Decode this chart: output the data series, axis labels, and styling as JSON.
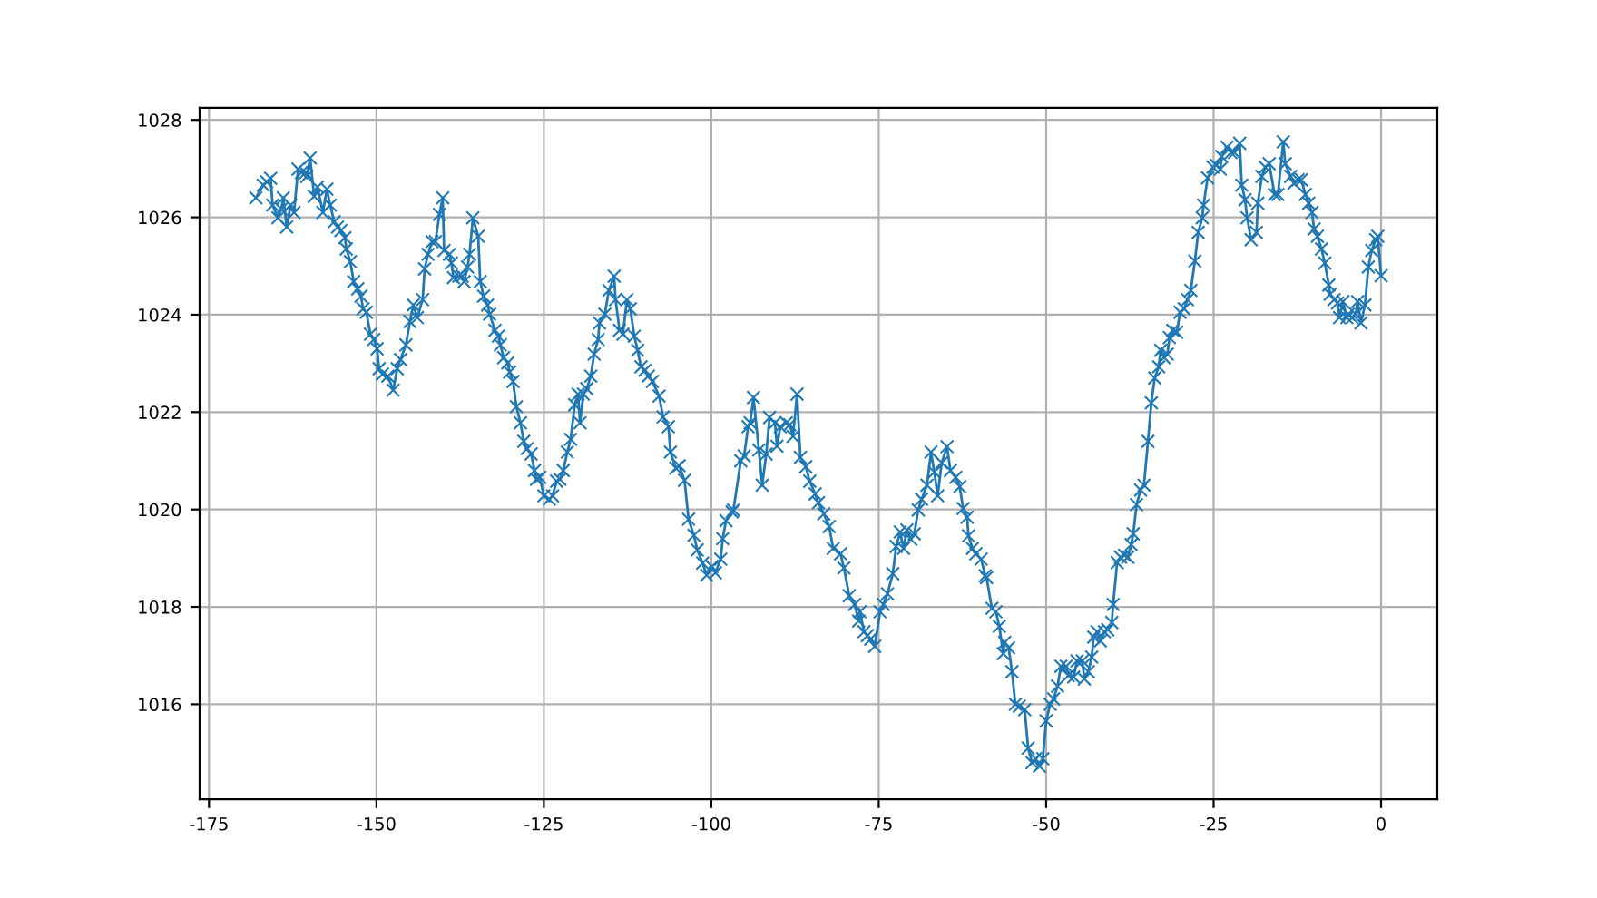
{
  "chart_data": {
    "type": "line",
    "marker": "cross",
    "line_style": "solid",
    "grid": true,
    "xlim": [
      -176.4,
      8.4
    ],
    "ylim": [
      1014.05,
      1028.25
    ],
    "xticks": [
      -175,
      -150,
      -125,
      -100,
      -75,
      -50,
      -25,
      0
    ],
    "yticks": [
      1016,
      1018,
      1020,
      1022,
      1024,
      1026,
      1028
    ],
    "series": [
      {
        "color": "#1f77b4",
        "x": [
          -168,
          -166.9,
          -166.4,
          -165.8,
          -165.5,
          -164.7,
          -164.2,
          -163.9,
          -163.4,
          -162.8,
          -162.3,
          -161.7,
          -161.2,
          -160.6,
          -160.4,
          -159.9,
          -159.3,
          -158.8,
          -158.0,
          -157.4,
          -156.9,
          -156.3,
          -155.8,
          -155.3,
          -154.7,
          -154.5,
          -153.9,
          -153.4,
          -152.8,
          -152.3,
          -152.0,
          -151.5,
          -150.9,
          -150.4,
          -149.9,
          -149.6,
          -149.1,
          -148.3,
          -147.5,
          -146.9,
          -146.4,
          -145.6,
          -145.0,
          -144.5,
          -143.9,
          -143.1,
          -142.8,
          -142.3,
          -141.7,
          -141.2,
          -140.6,
          -140.1,
          -139.9,
          -139.1,
          -138.8,
          -138.5,
          -137.7,
          -137.2,
          -136.9,
          -136.4,
          -136.1,
          -135.6,
          -134.8,
          -134.5,
          -134.0,
          -133.4,
          -133.1,
          -132.3,
          -131.8,
          -131.5,
          -131.0,
          -130.4,
          -130.1,
          -129.6,
          -129.1,
          -128.5,
          -128.0,
          -127.5,
          -126.9,
          -126.4,
          -126.1,
          -125.6,
          -125.0,
          -124.2,
          -123.7,
          -123.1,
          -122.6,
          -122.1,
          -121.5,
          -121.0,
          -120.4,
          -119.9,
          -119.6,
          -119.1,
          -118.6,
          -118.0,
          -117.5,
          -116.9,
          -116.7,
          -115.9,
          -115.3,
          -114.5,
          -114.3,
          -113.7,
          -113.2,
          -112.6,
          -112.1,
          -111.5,
          -111.0,
          -110.5,
          -109.9,
          -109.4,
          -108.8,
          -107.8,
          -107.2,
          -106.4,
          -106.1,
          -105.3,
          -104.8,
          -104.0,
          -103.4,
          -102.6,
          -102.1,
          -101.3,
          -100.7,
          -99.9,
          -99.4,
          -98.6,
          -98.3,
          -97.8,
          -96.9,
          -96.7,
          -95.6,
          -95.1,
          -94.5,
          -94.2,
          -93.7,
          -92.9,
          -92.4,
          -91.8,
          -91.3,
          -90.5,
          -90.2,
          -89.7,
          -88.8,
          -88.3,
          -87.8,
          -87.2,
          -86.7,
          -85.9,
          -85.3,
          -84.5,
          -84.0,
          -83.2,
          -82.4,
          -81.8,
          -80.7,
          -80.2,
          -79.4,
          -78.6,
          -78.0,
          -77.8,
          -77.2,
          -76.7,
          -76.2,
          -75.6,
          -74.8,
          -74.3,
          -73.7,
          -72.9,
          -72.4,
          -71.8,
          -71.3,
          -70.8,
          -70.2,
          -69.7,
          -69.1,
          -68.6,
          -67.8,
          -67.2,
          -66.7,
          -66.2,
          -65.6,
          -64.8,
          -64.3,
          -63.5,
          -62.9,
          -62.4,
          -61.8,
          -61.6,
          -61.0,
          -60.5,
          -59.7,
          -59.1,
          -58.9,
          -58.1,
          -57.5,
          -57.0,
          -56.4,
          -56.2,
          -55.6,
          -55.1,
          -54.6,
          -54.0,
          -53.2,
          -52.7,
          -52.1,
          -51.6,
          -51.0,
          -50.5,
          -50.0,
          -49.4,
          -48.9,
          -48.3,
          -47.8,
          -47.0,
          -46.7,
          -45.9,
          -45.4,
          -44.6,
          -44.3,
          -43.7,
          -43.2,
          -42.9,
          -42.4,
          -41.9,
          -41.3,
          -40.8,
          -40.2,
          -40.0,
          -39.4,
          -38.9,
          -38.3,
          -37.8,
          -37.3,
          -37.0,
          -36.5,
          -35.9,
          -35.4,
          -34.8,
          -34.3,
          -33.8,
          -33.2,
          -32.9,
          -32.4,
          -31.9,
          -31.6,
          -31.1,
          -30.5,
          -30.0,
          -29.4,
          -28.9,
          -28.4,
          -27.8,
          -27.3,
          -26.7,
          -26.5,
          -25.9,
          -25.1,
          -24.6,
          -24.0,
          -23.8,
          -23.0,
          -22.4,
          -21.9,
          -21.1,
          -20.8,
          -20.3,
          -20.0,
          -19.4,
          -18.6,
          -18.4,
          -17.8,
          -17.3,
          -16.7,
          -15.9,
          -15.4,
          -14.6,
          -14.3,
          -13.5,
          -13.0,
          -12.4,
          -11.9,
          -11.3,
          -10.8,
          -10.3,
          -10.0,
          -9.5,
          -8.9,
          -8.4,
          -7.8,
          -7.6,
          -7.0,
          -6.5,
          -6.2,
          -5.7,
          -5.1,
          -4.9,
          -4.3,
          -3.8,
          -3.5,
          -3.0,
          -2.4,
          -1.9,
          -1.4,
          -0.8,
          -0.5,
          0
        ],
        "values": [
          1026.4,
          1026.66,
          1026.73,
          1026.8,
          1026.25,
          1025.99,
          1026.17,
          1026.4,
          1025.8,
          1026.25,
          1026.1,
          1026.99,
          1026.92,
          1026.92,
          1026.84,
          1027.22,
          1026.43,
          1026.62,
          1026.1,
          1026.58,
          1026.25,
          1025.91,
          1025.8,
          1025.73,
          1025.58,
          1025.35,
          1025.09,
          1024.68,
          1024.53,
          1024.38,
          1024.12,
          1024.05,
          1023.6,
          1023.49,
          1023.3,
          1022.89,
          1022.78,
          1022.74,
          1022.45,
          1022.89,
          1023.08,
          1023.38,
          1023.86,
          1024.2,
          1023.94,
          1024.31,
          1024.94,
          1025.24,
          1025.5,
          1025.5,
          1026.06,
          1026.4,
          1025.32,
          1025.24,
          1025.06,
          1024.76,
          1024.79,
          1024.79,
          1024.68,
          1024.98,
          1025.24,
          1025.99,
          1025.61,
          1024.68,
          1024.38,
          1024.2,
          1024.01,
          1023.68,
          1023.56,
          1023.38,
          1023.12,
          1023.01,
          1022.82,
          1022.63,
          1022.11,
          1021.78,
          1021.4,
          1021.25,
          1021.14,
          1020.8,
          1020.62,
          1020.66,
          1020.28,
          1020.21,
          1020.28,
          1020.58,
          1020.62,
          1020.8,
          1021.18,
          1021.44,
          1022.15,
          1022.37,
          1021.78,
          1022.37,
          1022.48,
          1022.74,
          1023.19,
          1023.49,
          1023.83,
          1024.01,
          1024.5,
          1024.79,
          1024.31,
          1023.68,
          1023.6,
          1024.31,
          1024.12,
          1023.56,
          1023.27,
          1022.93,
          1022.86,
          1022.74,
          1022.63,
          1022.33,
          1021.9,
          1021.7,
          1021.18,
          1020.85,
          1020.9,
          1020.6,
          1019.8,
          1019.47,
          1019.17,
          1018.9,
          1018.65,
          1018.83,
          1018.7,
          1018.98,
          1019.4,
          1019.77,
          1019.95,
          1019.99,
          1021.0,
          1021.1,
          1021.7,
          1021.78,
          1022.3,
          1021.22,
          1020.5,
          1021.14,
          1021.89,
          1021.78,
          1021.3,
          1021.7,
          1021.78,
          1021.74,
          1021.5,
          1022.37,
          1021.07,
          1020.88,
          1020.58,
          1020.32,
          1020.14,
          1019.91,
          1019.65,
          1019.2,
          1019.09,
          1018.8,
          1018.23,
          1018.05,
          1017.71,
          1017.9,
          1017.49,
          1017.41,
          1017.34,
          1017.19,
          1017.9,
          1018.05,
          1018.27,
          1018.68,
          1019.24,
          1019.54,
          1019.2,
          1019.58,
          1019.39,
          1019.5,
          1019.99,
          1020.21,
          1020.5,
          1021.18,
          1020.77,
          1020.28,
          1020.96,
          1021.29,
          1020.8,
          1020.66,
          1020.47,
          1020.02,
          1019.84,
          1019.46,
          1019.2,
          1019.09,
          1018.98,
          1018.64,
          1018.6,
          1017.97,
          1017.9,
          1017.6,
          1017.04,
          1017.27,
          1017.16,
          1016.67,
          1016.0,
          1015.96,
          1015.89,
          1015.1,
          1014.8,
          1014.88,
          1014.73,
          1014.88,
          1015.66,
          1016.0,
          1016.11,
          1016.37,
          1016.78,
          1016.78,
          1016.59,
          1016.56,
          1016.89,
          1016.89,
          1016.52,
          1016.67,
          1016.97,
          1017.38,
          1017.49,
          1017.3,
          1017.49,
          1017.53,
          1017.68,
          1018.05,
          1018.91,
          1019.02,
          1019.06,
          1019.02,
          1019.28,
          1019.5,
          1020.1,
          1020.4,
          1020.5,
          1021.4,
          1022.19,
          1022.7,
          1022.93,
          1023.27,
          1023.12,
          1023.19,
          1023.53,
          1023.68,
          1023.64,
          1024.05,
          1024.12,
          1024.31,
          1024.5,
          1025.1,
          1025.69,
          1025.99,
          1026.25,
          1026.81,
          1027.03,
          1027.07,
          1026.99,
          1027.25,
          1027.44,
          1027.33,
          1027.33,
          1027.52,
          1026.66,
          1026.36,
          1025.99,
          1025.54,
          1025.69,
          1026.29,
          1026.84,
          1027.03,
          1027.1,
          1026.47,
          1026.47,
          1027.55,
          1027.1,
          1026.84,
          1026.7,
          1026.77,
          1026.77,
          1026.47,
          1026.29,
          1026.1,
          1025.76,
          1025.61,
          1025.35,
          1025.06,
          1024.61,
          1024.42,
          1024.31,
          1024.24,
          1023.94,
          1024.27,
          1023.94,
          1024.01,
          1023.94,
          1024.01,
          1024.27,
          1023.83,
          1024.2,
          1024.98,
          1025.32,
          1025.54,
          1025.61,
          1024.8
        ]
      }
    ]
  }
}
